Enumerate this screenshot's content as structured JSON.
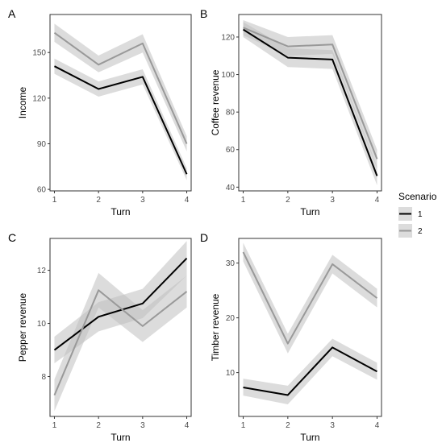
{
  "colors": {
    "scenario_1": "#000000",
    "scenario_2": "#999999",
    "ribbon": "#bfbfbf",
    "panel_border": "#333333"
  },
  "legend": {
    "title": "Scenario",
    "items": [
      {
        "label": "1",
        "color": "#000000"
      },
      {
        "label": "2",
        "color": "#999999"
      }
    ]
  },
  "chart_data": [
    {
      "type": "line",
      "panel": "A",
      "xlabel": "Turn",
      "ylabel": "Income",
      "x": [
        1,
        2,
        3,
        4
      ],
      "xlim": [
        0.9,
        4.1
      ],
      "ylim": [
        59,
        175
      ],
      "yticks": [
        60,
        90,
        120,
        150
      ],
      "xticks": [
        1,
        2,
        3,
        4
      ],
      "series": [
        {
          "name": "1",
          "values": [
            141,
            126,
            134,
            70
          ],
          "lower": [
            136,
            121,
            129,
            66
          ],
          "upper": [
            146,
            131,
            139,
            74
          ]
        },
        {
          "name": "2",
          "values": [
            163,
            142,
            156,
            90
          ],
          "lower": [
            157,
            137,
            150,
            85
          ],
          "upper": [
            169,
            148,
            162,
            95
          ]
        }
      ]
    },
    {
      "type": "line",
      "panel": "B",
      "xlabel": "Turn",
      "ylabel": "Coffee revenue",
      "x": [
        1,
        2,
        3,
        4
      ],
      "xlim": [
        0.9,
        4.1
      ],
      "ylim": [
        38,
        132
      ],
      "yticks": [
        40,
        60,
        80,
        100,
        120
      ],
      "xticks": [
        1,
        2,
        3,
        4
      ],
      "series": [
        {
          "name": "1",
          "values": [
            124,
            109,
            108,
            46
          ],
          "lower": [
            120,
            104,
            103,
            41
          ],
          "upper": [
            128,
            114,
            113,
            51
          ]
        },
        {
          "name": "2",
          "values": [
            125,
            115,
            116,
            55
          ],
          "lower": [
            121,
            110,
            111,
            50
          ],
          "upper": [
            129,
            120,
            121,
            60
          ]
        }
      ]
    },
    {
      "type": "line",
      "panel": "C",
      "xlabel": "Turn",
      "ylabel": "Pepper revenue",
      "x": [
        1,
        2,
        3,
        4
      ],
      "xlim": [
        0.9,
        4.1
      ],
      "ylim": [
        6.5,
        13.2
      ],
      "yticks": [
        8,
        10,
        12
      ],
      "xticks": [
        1,
        2,
        3,
        4
      ],
      "series": [
        {
          "name": "1",
          "values": [
            9.0,
            10.25,
            10.75,
            12.45
          ],
          "lower": [
            8.5,
            9.7,
            10.2,
            11.8
          ],
          "upper": [
            9.5,
            10.8,
            11.3,
            13.1
          ]
        },
        {
          "name": "2",
          "values": [
            7.3,
            11.25,
            9.9,
            11.2
          ],
          "lower": [
            6.7,
            10.6,
            9.3,
            10.6
          ],
          "upper": [
            7.9,
            11.9,
            10.5,
            11.8
          ]
        }
      ]
    },
    {
      "type": "line",
      "panel": "D",
      "xlabel": "Turn",
      "ylabel": "Timber revenue",
      "x": [
        1,
        2,
        3,
        4
      ],
      "xlim": [
        0.9,
        4.1
      ],
      "ylim": [
        2,
        34.5
      ],
      "yticks": [
        10,
        20,
        30
      ],
      "xticks": [
        1,
        2,
        3,
        4
      ],
      "series": [
        {
          "name": "1",
          "values": [
            7.3,
            5.9,
            14.6,
            10.2
          ],
          "lower": [
            5.8,
            4.2,
            13.0,
            8.7
          ],
          "upper": [
            8.9,
            7.6,
            16.2,
            11.8
          ]
        },
        {
          "name": "2",
          "values": [
            32.0,
            15.3,
            29.8,
            23.6
          ],
          "lower": [
            30.3,
            13.5,
            28.1,
            21.9
          ],
          "upper": [
            33.7,
            17.1,
            31.5,
            25.3
          ]
        }
      ]
    }
  ]
}
